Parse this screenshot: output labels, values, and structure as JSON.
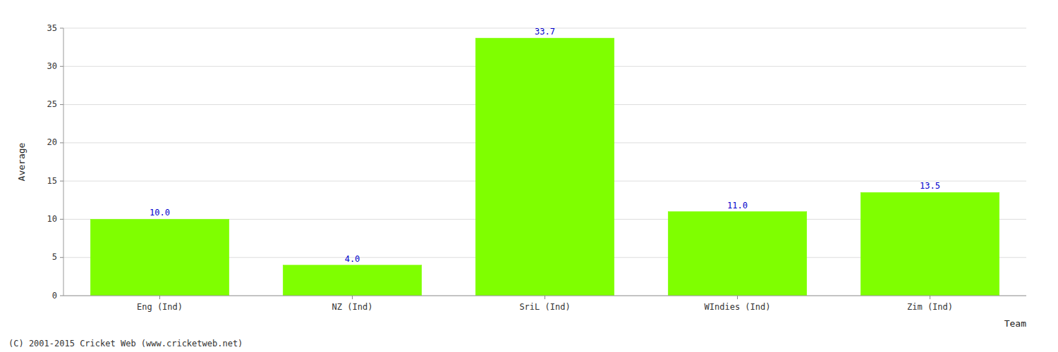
{
  "chart_data": {
    "type": "bar",
    "categories": [
      "Eng (Ind)",
      "NZ (Ind)",
      "SriL (Ind)",
      "WIndies (Ind)",
      "Zim (Ind)"
    ],
    "values": [
      10.0,
      4.0,
      33.7,
      11.0,
      13.5
    ],
    "value_labels": [
      "10.0",
      "4.0",
      "33.7",
      "11.0",
      "13.5"
    ],
    "color": "#7fff00",
    "xlabel": "Team",
    "ylabel": "Average",
    "ylim": [
      0,
      35
    ],
    "yticks": [
      0,
      5,
      10,
      15,
      20,
      25,
      30,
      35
    ],
    "grid": true,
    "data_labels": true,
    "annotations": [
      "(C) 2001-2015 Cricket Web (www.cricketweb.net)"
    ]
  }
}
